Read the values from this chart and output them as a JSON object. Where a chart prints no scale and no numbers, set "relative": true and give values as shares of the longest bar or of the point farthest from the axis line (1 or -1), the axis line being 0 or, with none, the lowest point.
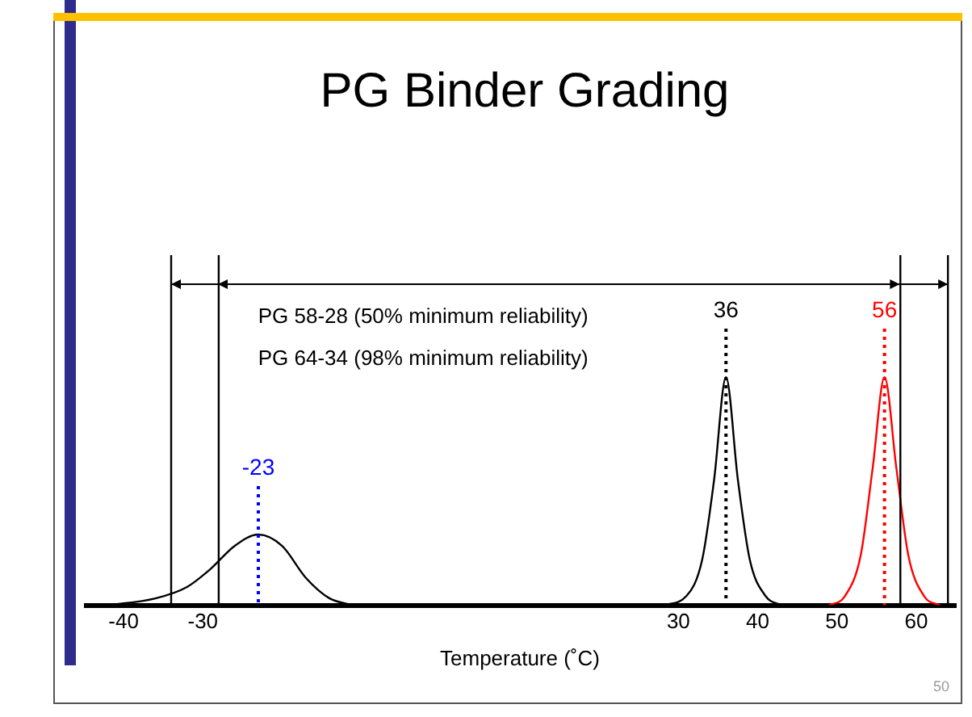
{
  "chart_data": {
    "type": "line",
    "title": "PG Binder Grading",
    "xlabel": "Temperature (˚C)",
    "relative": true,
    "xlim": [
      -45,
      65
    ],
    "xticks": [
      -40,
      -30,
      30,
      40,
      50,
      60
    ],
    "grid": false,
    "legend": false,
    "marker": "none",
    "line_style": "solid",
    "series": [
      {
        "color": "#000000",
        "x": [
          -42,
          -36,
          -32,
          -29,
          -26,
          -23,
          -20,
          -17,
          -14,
          -11
        ],
        "values": [
          0,
          0.03,
          0.08,
          0.16,
          0.26,
          0.31,
          0.26,
          0.12,
          0.03,
          0
        ]
      },
      {
        "color": "#000000",
        "x": [
          28,
          31,
          33,
          34.5,
          36,
          37.5,
          39,
          41,
          43
        ],
        "values": [
          0,
          0.04,
          0.2,
          0.55,
          1,
          0.55,
          0.2,
          0.04,
          0
        ]
      },
      {
        "color": "#ff0000",
        "x": [
          49,
          51,
          53,
          54.5,
          56,
          57.5,
          59,
          61,
          63
        ],
        "values": [
          0,
          0.04,
          0.22,
          0.6,
          1,
          0.6,
          0.22,
          0.04,
          0
        ]
      }
    ],
    "ref_lines": [
      {
        "axis": "x",
        "value": -34,
        "color": "#000000"
      },
      {
        "axis": "x",
        "value": -28,
        "color": "#000000"
      },
      {
        "axis": "x",
        "value": 58,
        "color": "#000000"
      },
      {
        "axis": "x",
        "value": 64,
        "color": "#000000"
      },
      {
        "axis": "x",
        "value": -23,
        "color": "#0000ff",
        "line_style": "dotted",
        "label": "-23"
      },
      {
        "axis": "x",
        "value": 36,
        "color": "#000000",
        "line_style": "dotted",
        "label": "36"
      },
      {
        "axis": "x",
        "value": 56,
        "color": "#ff0000",
        "line_style": "dotted",
        "label": "56"
      }
    ],
    "annotations": [
      "PG 58-28 (50% minimum reliability)",
      "PG 64-34 (98% minimum reliability)",
      "50"
    ]
  }
}
